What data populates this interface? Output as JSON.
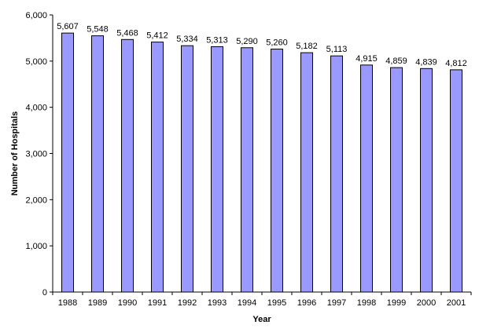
{
  "chart_data": {
    "type": "bar",
    "categories": [
      "1988",
      "1989",
      "1990",
      "1991",
      "1992",
      "1993",
      "1994",
      "1995",
      "1996",
      "1997",
      "1998",
      "1999",
      "2000",
      "2001"
    ],
    "values": [
      5607,
      5548,
      5468,
      5412,
      5334,
      5313,
      5290,
      5260,
      5182,
      5113,
      4915,
      4859,
      4839,
      4812
    ],
    "data_labels": [
      "5,607",
      "5,548",
      "5,468",
      "5,412",
      "5,334",
      "5,313",
      "5,290",
      "5,260",
      "5,182",
      "5,113",
      "4,915",
      "4,859",
      "4,839",
      "4,812"
    ],
    "xlabel": "Year",
    "ylabel": "Number of Hospitals",
    "ylim": [
      0,
      6000
    ],
    "yticks": [
      0,
      1000,
      2000,
      3000,
      4000,
      5000,
      6000
    ],
    "ytick_labels": [
      "0",
      "1,000",
      "2,000",
      "3,000",
      "4,000",
      "5,000",
      "6,000"
    ],
    "grid": false,
    "legend": "none",
    "colors": {
      "bar_fill": "#9999ff",
      "bar_stroke": "#000000",
      "axis": "#000000"
    }
  }
}
